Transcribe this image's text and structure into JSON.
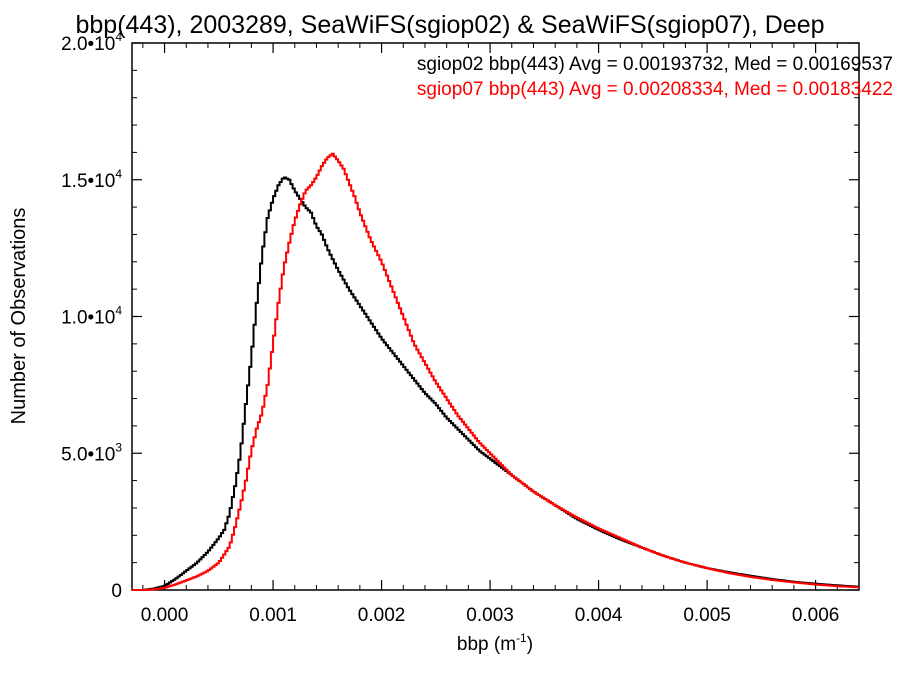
{
  "chart_data": {
    "type": "line",
    "title": "bbp(443), 2003289, SeaWiFS(sgiop02) & SeaWiFS(sgiop07), Deep",
    "xlabel": "bbp (m",
    "xlabel_sup": "-1",
    "xlabel_close": ")",
    "ylabel": "Number of Observations",
    "xlim": [
      -0.0003,
      0.0064
    ],
    "ylim": [
      0,
      20000
    ],
    "x_ticks": [
      {
        "value": 0.0,
        "label": "0.000"
      },
      {
        "value": 0.001,
        "label": "0.001"
      },
      {
        "value": 0.002,
        "label": "0.002"
      },
      {
        "value": 0.003,
        "label": "0.003"
      },
      {
        "value": 0.004,
        "label": "0.004"
      },
      {
        "value": 0.005,
        "label": "0.005"
      },
      {
        "value": 0.006,
        "label": "0.006"
      }
    ],
    "y_ticks": [
      {
        "value": 0,
        "mant": "0",
        "exp": ""
      },
      {
        "value": 5000,
        "mant": "5.0•10",
        "exp": "3"
      },
      {
        "value": 10000,
        "mant": "1.0•10",
        "exp": "4"
      },
      {
        "value": 15000,
        "mant": "1.5•10",
        "exp": "4"
      },
      {
        "value": 20000,
        "mant": "2.0•10",
        "exp": "4"
      }
    ],
    "grid": false,
    "legend_position": "top-right",
    "series": [
      {
        "name": "sgiop02 bbp(443) Avg = 0.00193732, Med = 0.00169537",
        "color": "#000000",
        "x": [
          -0.0003,
          -0.0002,
          -0.0001,
          0.0,
          0.0001,
          0.0002,
          0.0003,
          0.0004,
          0.0005,
          0.00055,
          0.0006,
          0.00065,
          0.0007,
          0.00075,
          0.0008,
          0.00085,
          0.0009,
          0.00095,
          0.001,
          0.00105,
          0.0011,
          0.00115,
          0.0012,
          0.00125,
          0.0013,
          0.00135,
          0.0014,
          0.00145,
          0.0015,
          0.0016,
          0.0017,
          0.0018,
          0.0019,
          0.002,
          0.0021,
          0.0022,
          0.0023,
          0.0024,
          0.0025,
          0.0026,
          0.0027,
          0.0028,
          0.0029,
          0.003,
          0.0032,
          0.0034,
          0.0036,
          0.0038,
          0.004,
          0.0042,
          0.0044,
          0.0046,
          0.0048,
          0.005,
          0.0052,
          0.0054,
          0.0056,
          0.0058,
          0.006,
          0.0062,
          0.0064
        ],
        "y": [
          0,
          0,
          50,
          150,
          400,
          700,
          1000,
          1400,
          1900,
          2200,
          2800,
          3800,
          5000,
          6800,
          8500,
          10500,
          12300,
          13600,
          14300,
          14800,
          15100,
          15000,
          14600,
          14300,
          14000,
          13800,
          13300,
          13000,
          12500,
          11700,
          11000,
          10400,
          9800,
          9200,
          8700,
          8200,
          7700,
          7200,
          6800,
          6300,
          5900,
          5500,
          5100,
          4800,
          4200,
          3600,
          3100,
          2600,
          2200,
          1850,
          1550,
          1250,
          1000,
          800,
          650,
          520,
          400,
          300,
          230,
          170,
          120
        ]
      },
      {
        "name": "sgiop07 bbp(443) Avg = 0.00208334, Med = 0.00183422",
        "color": "#ff0000",
        "x": [
          -0.0003,
          -0.0002,
          -0.0001,
          0.0,
          0.0001,
          0.0002,
          0.0003,
          0.0004,
          0.0005,
          0.0006,
          0.00065,
          0.0007,
          0.00075,
          0.0008,
          0.00085,
          0.0009,
          0.00095,
          0.001,
          0.00105,
          0.0011,
          0.00115,
          0.0012,
          0.00125,
          0.0013,
          0.00135,
          0.0014,
          0.00145,
          0.0015,
          0.00155,
          0.0016,
          0.00165,
          0.0017,
          0.00175,
          0.0018,
          0.00185,
          0.0019,
          0.002,
          0.0021,
          0.0022,
          0.0023,
          0.0024,
          0.0025,
          0.0026,
          0.0027,
          0.0028,
          0.0029,
          0.003,
          0.0032,
          0.0034,
          0.0036,
          0.0038,
          0.004,
          0.0042,
          0.0044,
          0.0046,
          0.0048,
          0.005,
          0.0052,
          0.0054,
          0.0056,
          0.0058,
          0.006,
          0.0062,
          0.0064
        ],
        "y": [
          0,
          0,
          20,
          80,
          200,
          350,
          500,
          700,
          1000,
          1600,
          2300,
          3100,
          4000,
          5100,
          5900,
          6500,
          7500,
          9000,
          10500,
          11800,
          12700,
          13500,
          14100,
          14600,
          14800,
          15100,
          15500,
          15800,
          15950,
          15700,
          15400,
          14900,
          14400,
          13800,
          13300,
          12800,
          12000,
          11000,
          10000,
          9000,
          8300,
          7600,
          7000,
          6400,
          5900,
          5400,
          5000,
          4200,
          3600,
          3100,
          2650,
          2250,
          1900,
          1550,
          1250,
          1000,
          800,
          620,
          480,
          370,
          280,
          200,
          140,
          100
        ]
      }
    ]
  }
}
